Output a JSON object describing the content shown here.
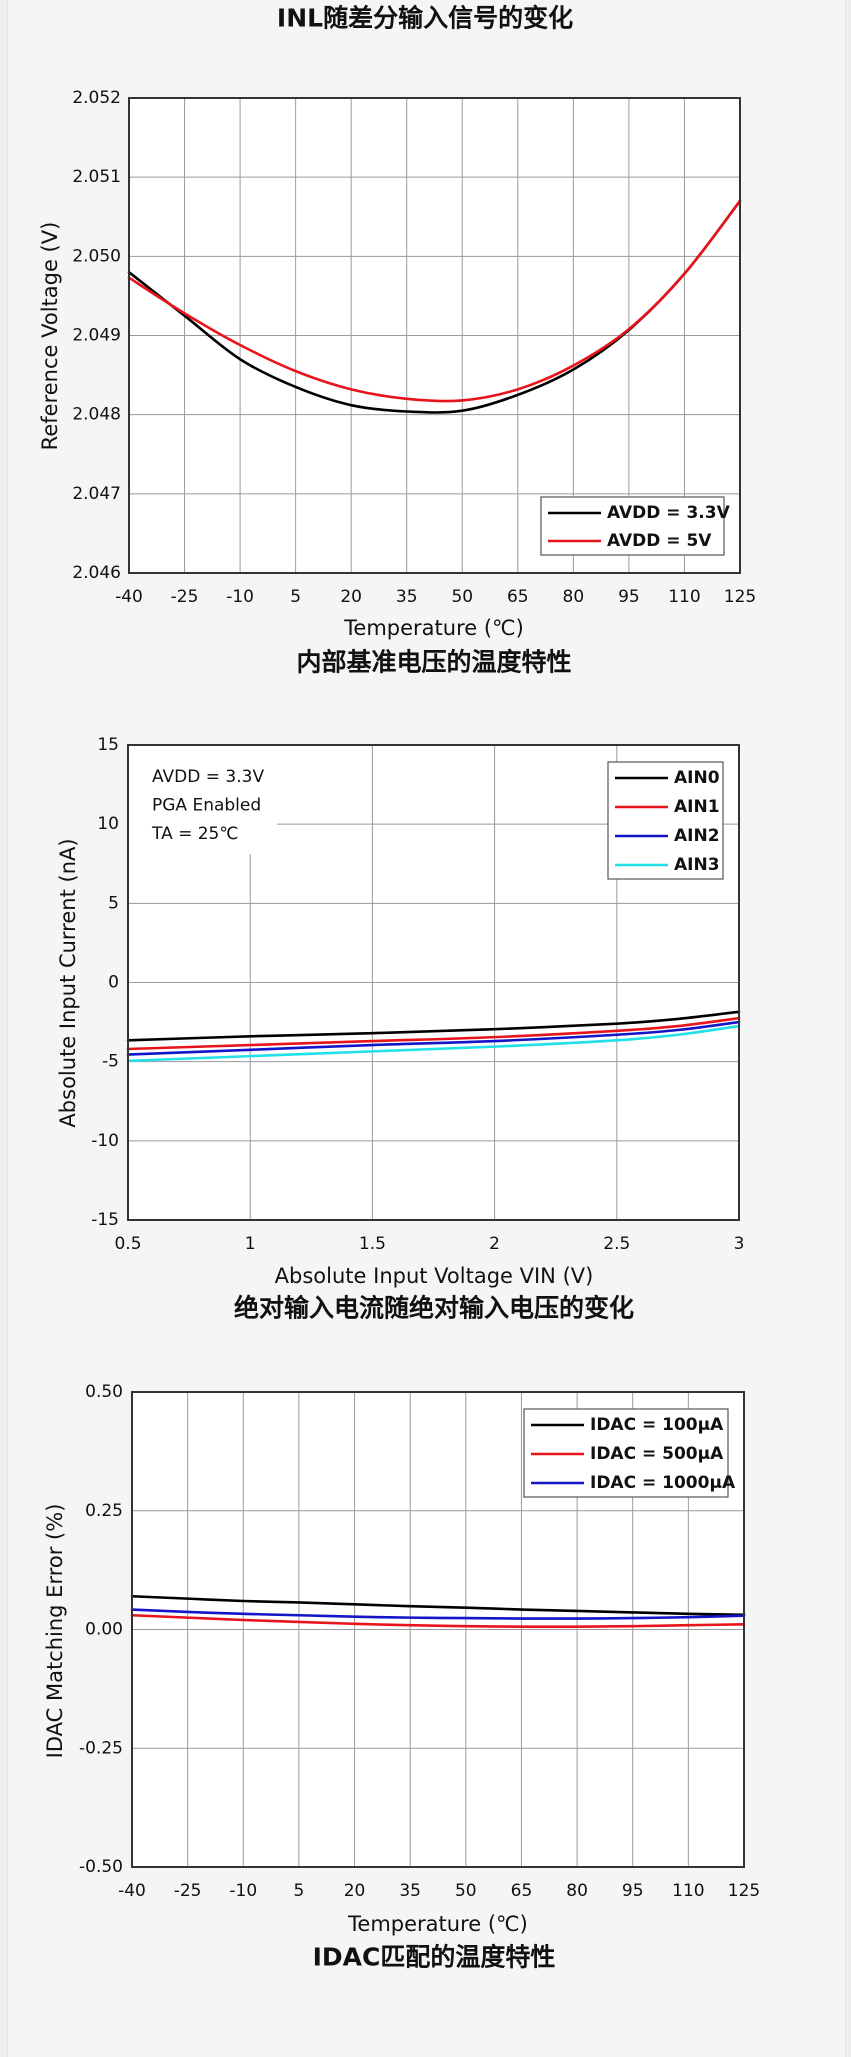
{
  "page": {
    "top_caption": "INL随差分输入信号的变化"
  },
  "colors": {
    "page_background": "#f5f5f5",
    "plot_background": "#ffffff",
    "axis": "#333333",
    "grid": "#9a9a9a",
    "legend_border": "#555555"
  },
  "chart_data": [
    {
      "type": "line",
      "caption": "内部基准电压的温度特性",
      "xlabel": "Temperature (℃)",
      "ylabel": "Reference Voltage (V)",
      "xlim": [
        -40,
        125
      ],
      "ylim": [
        2.046,
        2.052
      ],
      "xticks": [
        -40,
        -25,
        -10,
        5,
        20,
        35,
        50,
        65,
        80,
        95,
        110,
        125
      ],
      "xtick_labels": [
        "-40",
        "-25",
        "-10",
        "5",
        "20",
        "35",
        "50",
        "65",
        "80",
        "95",
        "110",
        "125"
      ],
      "yticks": [
        2.046,
        2.047,
        2.048,
        2.049,
        2.05,
        2.051,
        2.052
      ],
      "ytick_labels": [
        "2.046",
        "2.047",
        "2.048",
        "2.049",
        "2.050",
        "2.051",
        "2.052"
      ],
      "grid": true,
      "legend": "bottom-right",
      "series": [
        {
          "name": "AVDD = 3.3V",
          "color": "#000000",
          "x": [
            -40,
            -25,
            -10,
            5,
            20,
            35,
            50,
            65,
            80,
            95,
            110,
            125
          ],
          "y": [
            2.0498,
            2.04925,
            2.0487,
            2.04835,
            2.04812,
            2.04804,
            2.04805,
            2.04825,
            2.04857,
            2.04907,
            2.04978,
            2.0507
          ]
        },
        {
          "name": "AVDD = 5V",
          "color": "#e8141b",
          "x": [
            -40,
            -25,
            -10,
            5,
            20,
            35,
            50,
            65,
            80,
            95,
            110,
            125
          ],
          "y": [
            2.04973,
            2.04928,
            2.04888,
            2.04855,
            2.04832,
            2.0482,
            2.04818,
            2.04832,
            2.04862,
            2.04908,
            2.04978,
            2.0507
          ]
        }
      ]
    },
    {
      "type": "line",
      "caption": "绝对输入电流随绝对输入电压的变化",
      "xlabel": "Absolute Input Voltage VIN (V)",
      "ylabel": "Absolute Input Current (nA)",
      "xlim": [
        0.5,
        3
      ],
      "ylim": [
        -15,
        15
      ],
      "xticks": [
        0.5,
        1,
        1.5,
        2,
        2.5,
        3
      ],
      "xtick_labels": [
        "0.5",
        "1",
        "1.5",
        "2",
        "2.5",
        "3"
      ],
      "yticks": [
        -15,
        -10,
        -5,
        0,
        5,
        10,
        15
      ],
      "ytick_labels": [
        "-15",
        "-10",
        "-5",
        "0",
        "5",
        "10",
        "15"
      ],
      "grid": true,
      "legend": "top-right",
      "annotations": [
        "AVDD = 3.3V",
        "PGA Enabled",
        "TA = 25℃"
      ],
      "series": [
        {
          "name": "AIN0",
          "color": "#000000",
          "x": [
            0.5,
            1,
            1.5,
            2,
            2.5,
            2.75,
            3
          ],
          "y": [
            -3.65,
            -3.4,
            -3.2,
            -2.95,
            -2.6,
            -2.3,
            -1.85
          ]
        },
        {
          "name": "AIN1",
          "color": "#e8141b",
          "x": [
            0.5,
            1,
            1.5,
            2,
            2.5,
            2.75,
            3
          ],
          "y": [
            -4.2,
            -3.95,
            -3.7,
            -3.45,
            -3.05,
            -2.75,
            -2.25
          ]
        },
        {
          "name": "AIN2",
          "color": "#1414c8",
          "x": [
            0.5,
            1,
            1.5,
            2,
            2.5,
            2.75,
            3
          ],
          "y": [
            -4.55,
            -4.25,
            -3.95,
            -3.7,
            -3.3,
            -3.0,
            -2.5
          ]
        },
        {
          "name": "AIN3",
          "color": "#22e0e8",
          "x": [
            0.5,
            1,
            1.5,
            2,
            2.5,
            2.75,
            3
          ],
          "y": [
            -4.95,
            -4.65,
            -4.35,
            -4.05,
            -3.65,
            -3.3,
            -2.75
          ]
        }
      ]
    },
    {
      "type": "line",
      "caption": "IDAC匹配的温度特性",
      "xlabel": "Temperature (℃)",
      "ylabel": "IDAC Matching Error (%)",
      "xlim": [
        -40,
        125
      ],
      "ylim": [
        -0.5,
        0.5
      ],
      "xticks": [
        -40,
        -25,
        -10,
        5,
        20,
        35,
        50,
        65,
        80,
        95,
        110,
        125
      ],
      "xtick_labels": [
        "-40",
        "-25",
        "-10",
        "5",
        "20",
        "35",
        "50",
        "65",
        "80",
        "95",
        "110",
        "125"
      ],
      "yticks": [
        -0.5,
        -0.25,
        0,
        0.25,
        0.5
      ],
      "ytick_labels": [
        "-0.50",
        "-0.25",
        "0.00",
        "0.25",
        "0.50"
      ],
      "grid": true,
      "legend": "top-right",
      "series": [
        {
          "name": "IDAC = 100μA",
          "color": "#000000",
          "x": [
            -40,
            -25,
            -10,
            5,
            20,
            35,
            50,
            65,
            80,
            95,
            110,
            125
          ],
          "y": [
            0.07,
            0.065,
            0.06,
            0.057,
            0.053,
            0.049,
            0.046,
            0.042,
            0.039,
            0.036,
            0.033,
            0.031
          ]
        },
        {
          "name": "IDAC = 500μA",
          "color": "#e8141b",
          "x": [
            -40,
            -25,
            -10,
            5,
            20,
            35,
            50,
            65,
            80,
            95,
            110,
            125
          ],
          "y": [
            0.03,
            0.025,
            0.02,
            0.016,
            0.012,
            0.009,
            0.007,
            0.006,
            0.006,
            0.007,
            0.009,
            0.011
          ]
        },
        {
          "name": "IDAC = 1000μA",
          "color": "#1414c8",
          "x": [
            -40,
            -25,
            -10,
            5,
            20,
            35,
            50,
            65,
            80,
            95,
            110,
            125
          ],
          "y": [
            0.042,
            0.037,
            0.033,
            0.03,
            0.027,
            0.025,
            0.024,
            0.023,
            0.023,
            0.024,
            0.026,
            0.029
          ]
        }
      ]
    }
  ]
}
